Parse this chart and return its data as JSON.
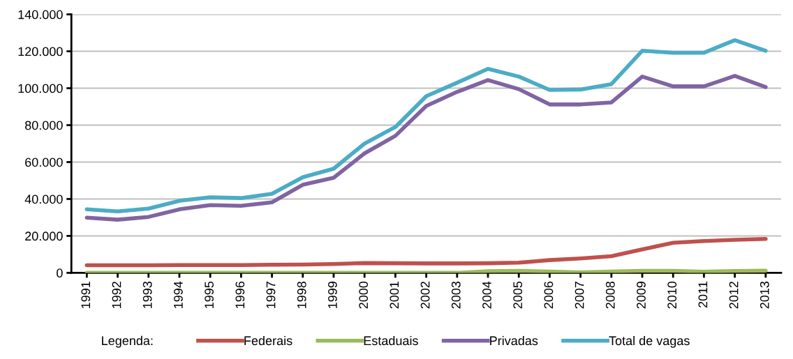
{
  "chart_data": {
    "type": "line",
    "categories": [
      "1991",
      "1992",
      "1993",
      "1994",
      "1995",
      "1996",
      "1997",
      "1998",
      "1999",
      "2000",
      "2001",
      "2002",
      "2003",
      "2004",
      "2005",
      "2006",
      "2007",
      "2008",
      "2009",
      "2010",
      "2011",
      "2012",
      "2013"
    ],
    "series": [
      {
        "name": "Federais",
        "color": "#c0504d",
        "values": [
          4100,
          4100,
          4100,
          4200,
          4200,
          4200,
          4400,
          4500,
          4800,
          5300,
          5200,
          5100,
          5100,
          5200,
          5500,
          6900,
          7800,
          9000,
          12700,
          16300,
          17200,
          17900,
          18400
        ]
      },
      {
        "name": "Estaduais",
        "color": "#9bbb59",
        "values": [
          0,
          0,
          0,
          0,
          0,
          0,
          0,
          0,
          0,
          0,
          0,
          0,
          0,
          900,
          1100,
          700,
          200,
          700,
          1100,
          1100,
          600,
          1000,
          1200
        ]
      },
      {
        "name": "Privadas",
        "color": "#8064a2",
        "values": [
          29900,
          28800,
          30300,
          34400,
          36700,
          36300,
          38200,
          47700,
          51500,
          64700,
          74200,
          90400,
          98000,
          104400,
          99500,
          91200,
          91200,
          92300,
          106300,
          101000,
          101000,
          106700,
          100600
        ]
      },
      {
        "name": "Total de vagas",
        "color": "#4bacc6",
        "values": [
          34400,
          33300,
          34800,
          39000,
          40900,
          40500,
          42800,
          51800,
          56400,
          70000,
          79000,
          95700,
          103000,
          110500,
          106300,
          99100,
          99300,
          102200,
          120300,
          119200,
          119200,
          126000,
          120300
        ]
      }
    ],
    "ylim": [
      0,
      140000
    ],
    "yticks": [
      0,
      {
        "value": 20000,
        "label": "20.000"
      },
      {
        "value": 40000,
        "label": "40.000"
      },
      {
        "value": 60000,
        "label": "60.000"
      },
      {
        "value": 80000,
        "label": "80.000"
      },
      {
        "value": 100000,
        "label": "100.000"
      },
      {
        "value": 120000,
        "label": "120.000"
      },
      {
        "value": 140000,
        "label": "140.000"
      }
    ],
    "grid": "y",
    "legend": "bottom",
    "legend_title": "Legenda:",
    "marker": "none",
    "line_style": "solid"
  }
}
